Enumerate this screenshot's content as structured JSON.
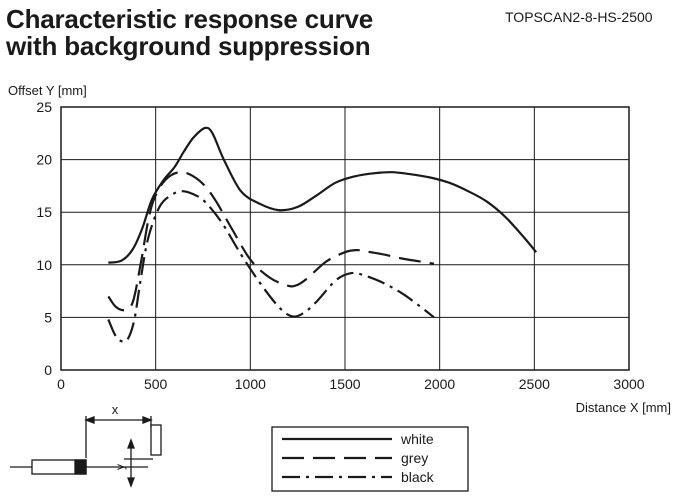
{
  "header": {
    "title_line1": "Characteristic response curve",
    "title_line2": "with background suppression",
    "model_code": "TOPSCAN2-8-HS-2500"
  },
  "chart_data": {
    "type": "line",
    "ylabel": "Offset Y [mm]",
    "xlabel": "Distance X [mm]",
    "xlim": [
      0,
      3000
    ],
    "ylim": [
      0,
      25
    ],
    "x_ticks": [
      "0",
      "500",
      "1000",
      "1500",
      "2000",
      "2500",
      "3000"
    ],
    "y_ticks": [
      "0",
      "5",
      "10",
      "15",
      "20",
      "25"
    ],
    "grid": true,
    "legend_position": "bottom-center",
    "series": [
      {
        "name": "white",
        "style": "solid",
        "x": [
          250,
          320,
          380,
          430,
          480,
          540,
          600,
          650,
          700,
          760,
          800,
          860,
          950,
          1050,
          1150,
          1250,
          1350,
          1450,
          1550,
          1650,
          1750,
          1850,
          1950,
          2050,
          2150,
          2250,
          2350,
          2450,
          2510
        ],
        "y": [
          10.2,
          10.4,
          11.5,
          13.5,
          16.2,
          18.0,
          19.3,
          20.8,
          22.1,
          23.0,
          22.5,
          20.0,
          17.0,
          15.8,
          15.2,
          15.5,
          16.6,
          17.8,
          18.4,
          18.7,
          18.8,
          18.6,
          18.3,
          17.8,
          17.0,
          16.0,
          14.5,
          12.5,
          11.2
        ]
      },
      {
        "name": "grey",
        "style": "dashed",
        "x": [
          250,
          290,
          340,
          380,
          420,
          470,
          520,
          580,
          640,
          700,
          760,
          820,
          900,
          1000,
          1100,
          1200,
          1250,
          1300,
          1400,
          1500,
          1560,
          1600,
          1700,
          1800,
          1900,
          1970
        ],
        "y": [
          7.0,
          6.0,
          5.7,
          6.5,
          10.0,
          15.0,
          17.3,
          18.5,
          18.8,
          18.4,
          17.5,
          16.0,
          13.5,
          10.5,
          8.8,
          8.0,
          8.1,
          8.7,
          10.3,
          11.2,
          11.4,
          11.3,
          11.0,
          10.6,
          10.3,
          10.1
        ]
      },
      {
        "name": "black",
        "style": "dash-dot",
        "x": [
          250,
          290,
          330,
          360,
          390,
          420,
          460,
          520,
          580,
          640,
          700,
          760,
          850,
          950,
          1050,
          1150,
          1220,
          1280,
          1350,
          1450,
          1530,
          1600,
          1700,
          1800,
          1900,
          1970
        ],
        "y": [
          4.8,
          3.2,
          2.7,
          3.2,
          5.0,
          8.5,
          12.5,
          15.5,
          16.6,
          17.0,
          16.7,
          16.0,
          14.0,
          11.0,
          8.3,
          6.0,
          5.1,
          5.4,
          6.5,
          8.5,
          9.2,
          9.0,
          8.3,
          7.3,
          6.0,
          5.0
        ]
      }
    ]
  }
}
